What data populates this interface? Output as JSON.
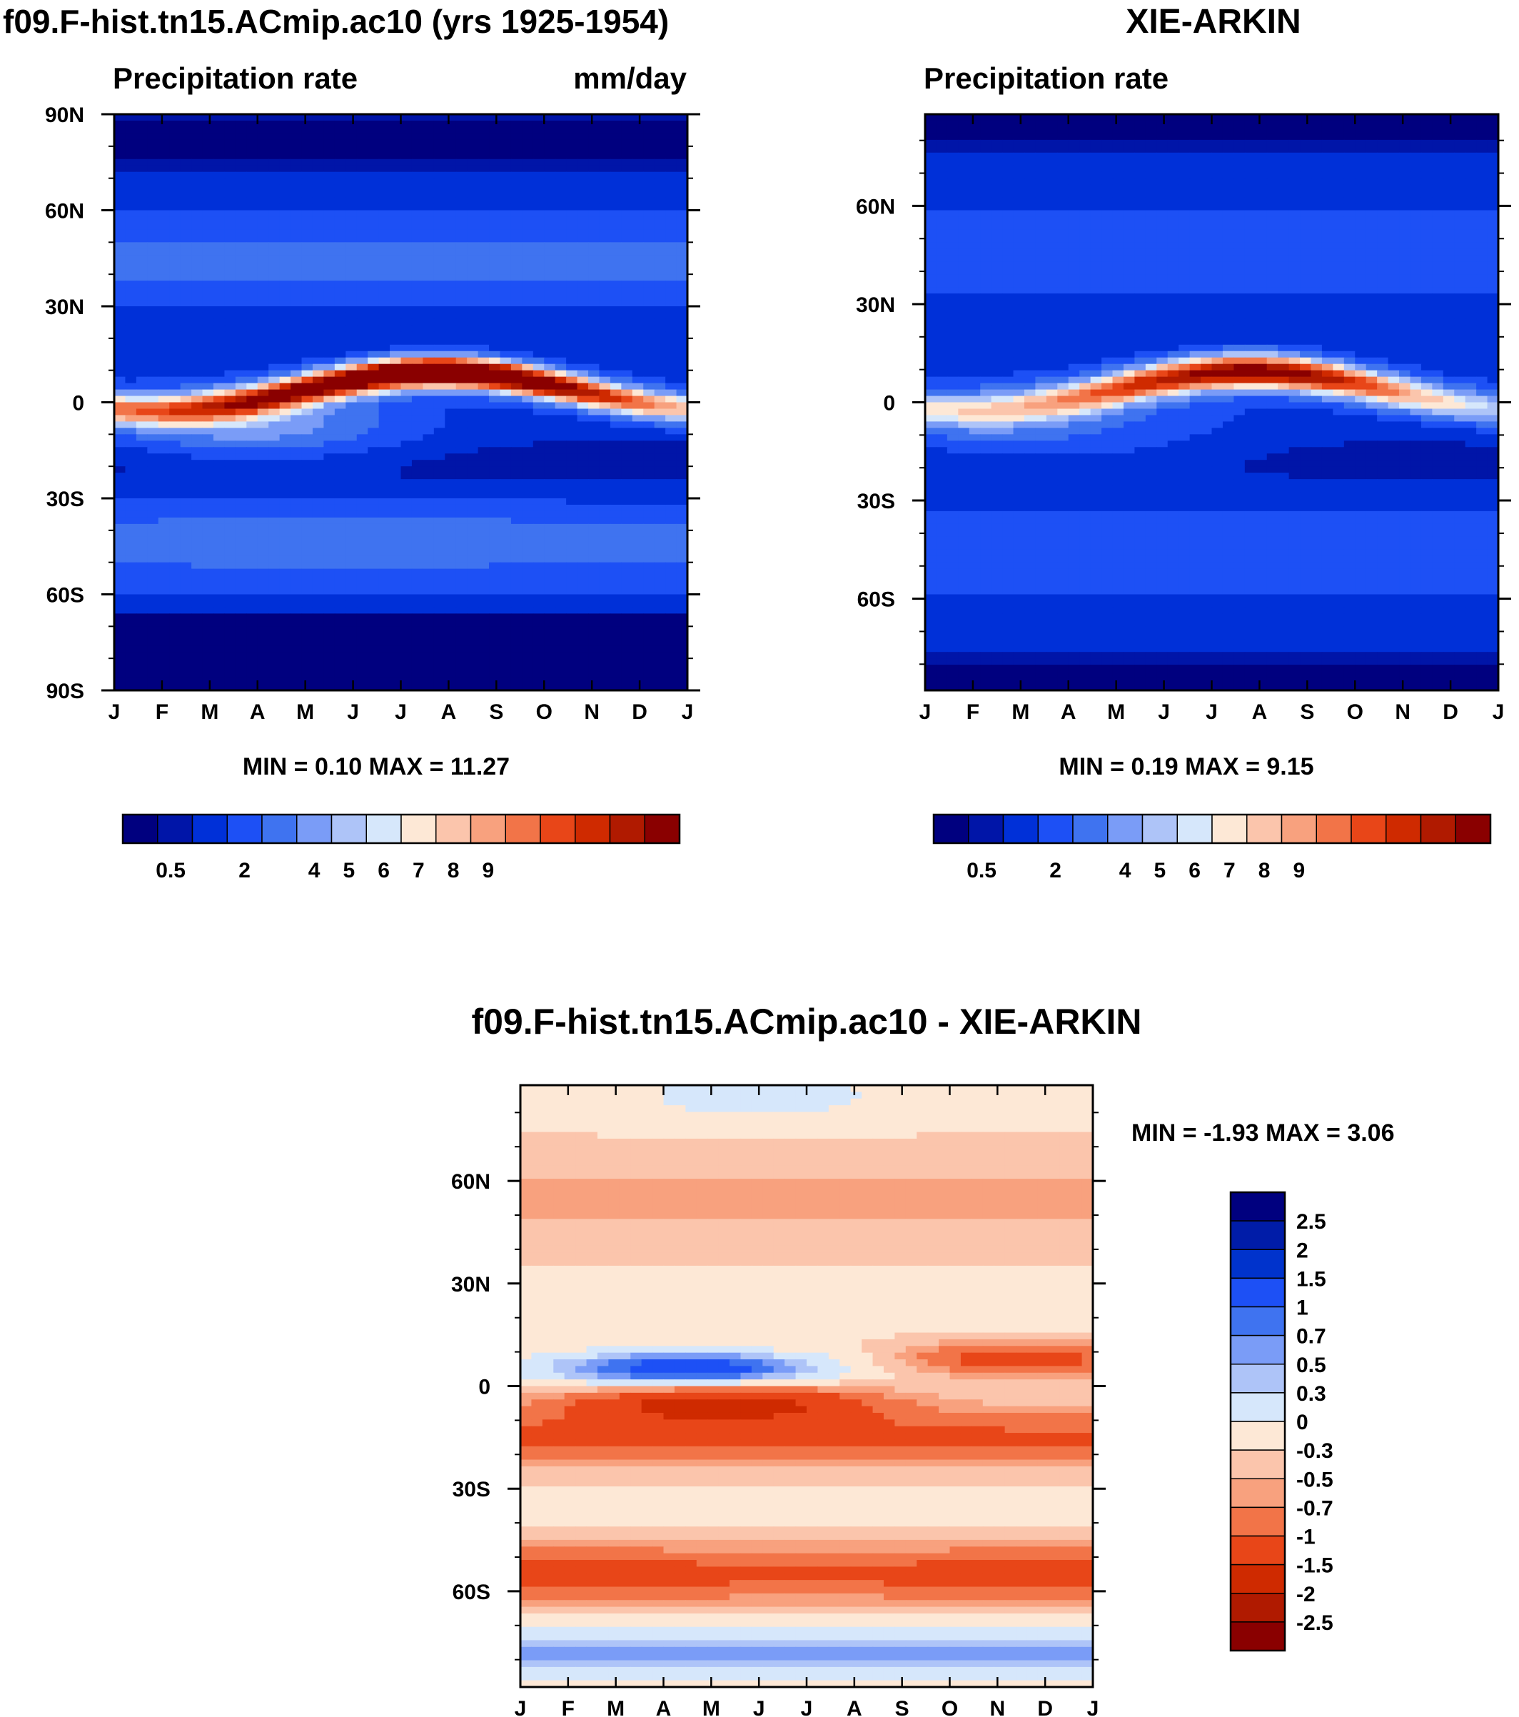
{
  "chart_data": [
    {
      "type": "heatmap",
      "panel": "model",
      "title": "f09.F-hist.tn15.ACmip.ac10 (yrs 1925-1954)",
      "subtitle_left": "Precipitation rate",
      "subtitle_right": "mm/day",
      "x_ticks": [
        "J",
        "F",
        "M",
        "A",
        "M",
        "J",
        "J",
        "A",
        "S",
        "O",
        "N",
        "D",
        "J"
      ],
      "y_ticks": [
        {
          "v": 90,
          "label": "90N"
        },
        {
          "v": 60,
          "label": "60N"
        },
        {
          "v": 30,
          "label": "30N"
        },
        {
          "v": 0,
          "label": "0"
        },
        {
          "v": -30,
          "label": "30S"
        },
        {
          "v": -60,
          "label": "60S"
        },
        {
          "v": -90,
          "label": "90S"
        }
      ],
      "ylim": [
        -90,
        90
      ],
      "stats": "MIN =   0.10 MAX =  11.27",
      "colorbar_labels": [
        "0.5",
        "2",
        "4",
        "5",
        "6",
        "7",
        "8",
        "9"
      ]
    },
    {
      "type": "heatmap",
      "panel": "obs",
      "title": "XIE-ARKIN",
      "subtitle_left": "Precipitation rate",
      "subtitle_right": "",
      "x_ticks": [
        "J",
        "F",
        "M",
        "A",
        "M",
        "J",
        "J",
        "A",
        "S",
        "O",
        "N",
        "D",
        "J"
      ],
      "y_ticks": [
        {
          "v": 60,
          "label": "60N"
        },
        {
          "v": 30,
          "label": "30N"
        },
        {
          "v": 0,
          "label": "0"
        },
        {
          "v": -30,
          "label": "30S"
        },
        {
          "v": -60,
          "label": "60S"
        }
      ],
      "ylim": [
        -88,
        88
      ],
      "stats": "MIN =   0.19 MAX =   9.15",
      "colorbar_labels": [
        "0.5",
        "2",
        "4",
        "5",
        "6",
        "7",
        "8",
        "9"
      ]
    },
    {
      "type": "heatmap",
      "panel": "diff",
      "title": "f09.F-hist.tn15.ACmip.ac10 - XIE-ARKIN",
      "x_ticks": [
        "J",
        "F",
        "M",
        "A",
        "M",
        "J",
        "J",
        "A",
        "S",
        "O",
        "N",
        "D",
        "J"
      ],
      "y_ticks": [
        {
          "v": 60,
          "label": "60N"
        },
        {
          "v": 30,
          "label": "30N"
        },
        {
          "v": 0,
          "label": "0"
        },
        {
          "v": -30,
          "label": "30S"
        },
        {
          "v": -60,
          "label": "60S"
        }
      ],
      "ylim": [
        -88,
        88
      ],
      "stats": "MIN =  -1.93 MAX =   3.06",
      "colorbar_labels": [
        "2.5",
        "2",
        "1.5",
        "1",
        "0.7",
        "0.5",
        "0.3",
        "0",
        "-0.3",
        "-0.5",
        "-0.7",
        "-1",
        "-1.5",
        "-2",
        "-2.5"
      ]
    }
  ],
  "colors": {
    "precip": [
      "#00007f",
      "#0015a8",
      "#0030d8",
      "#1d50f5",
      "#3f73f0",
      "#7a9cf7",
      "#aec4f8",
      "#d6e7fb",
      "#fde8d6",
      "#fbc5ac",
      "#f8a17e",
      "#f27448",
      "#e84618",
      "#cf2a00",
      "#b01a00",
      "#8a0000"
    ],
    "diff": [
      "#00007f",
      "#001ca8",
      "#0033cc",
      "#1d50f5",
      "#3f73f0",
      "#7a9cf7",
      "#aec4f8",
      "#d6e7fb",
      "#fde8d6",
      "#fbc5ac",
      "#f8a17e",
      "#f27448",
      "#e84618",
      "#cf2a00",
      "#b01a00",
      "#8a0000"
    ]
  }
}
